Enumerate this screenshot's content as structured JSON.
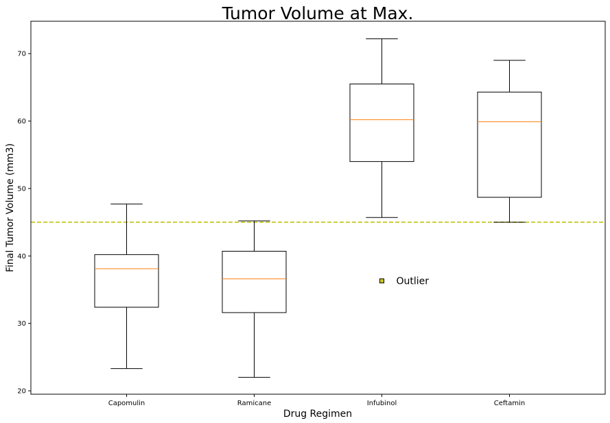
{
  "chart_data": {
    "type": "box",
    "title": "Tumor Volume at Max.",
    "xlabel": "Drug Regimen",
    "ylabel": "Final Tumor Volume (mm3)",
    "ylim": [
      19.5,
      74.8
    ],
    "yticks": [
      20,
      30,
      40,
      50,
      60,
      70
    ],
    "categories": [
      "Capomulin",
      "Ramicane",
      "Infubinol",
      "Ceftamin"
    ],
    "boxes": [
      {
        "name": "Capomulin",
        "whisker_low": 23.3,
        "q1": 32.4,
        "median": 38.1,
        "q3": 40.2,
        "whisker_high": 47.7
      },
      {
        "name": "Ramicane",
        "whisker_low": 22.0,
        "q1": 31.6,
        "median": 36.6,
        "q3": 40.7,
        "whisker_high": 45.2
      },
      {
        "name": "Infubinol",
        "whisker_low": 45.7,
        "q1": 54.0,
        "median": 60.2,
        "q3": 65.5,
        "whisker_high": 72.2
      },
      {
        "name": "Ceftamin",
        "whisker_low": 45.0,
        "q1": 48.7,
        "median": 59.9,
        "q3": 64.3,
        "whisker_high": 69.0
      }
    ],
    "reference_line": {
      "y": 45,
      "color": "#c7c722",
      "style": "dashed"
    },
    "annotation": {
      "text": "Outlier",
      "x_category": "Infubinol",
      "y": 36.3,
      "marker_color": "#c7c722"
    },
    "grid": false,
    "colors": {
      "box": "#000000",
      "median": "#ff7f0e",
      "reference": "#c7c722"
    }
  }
}
